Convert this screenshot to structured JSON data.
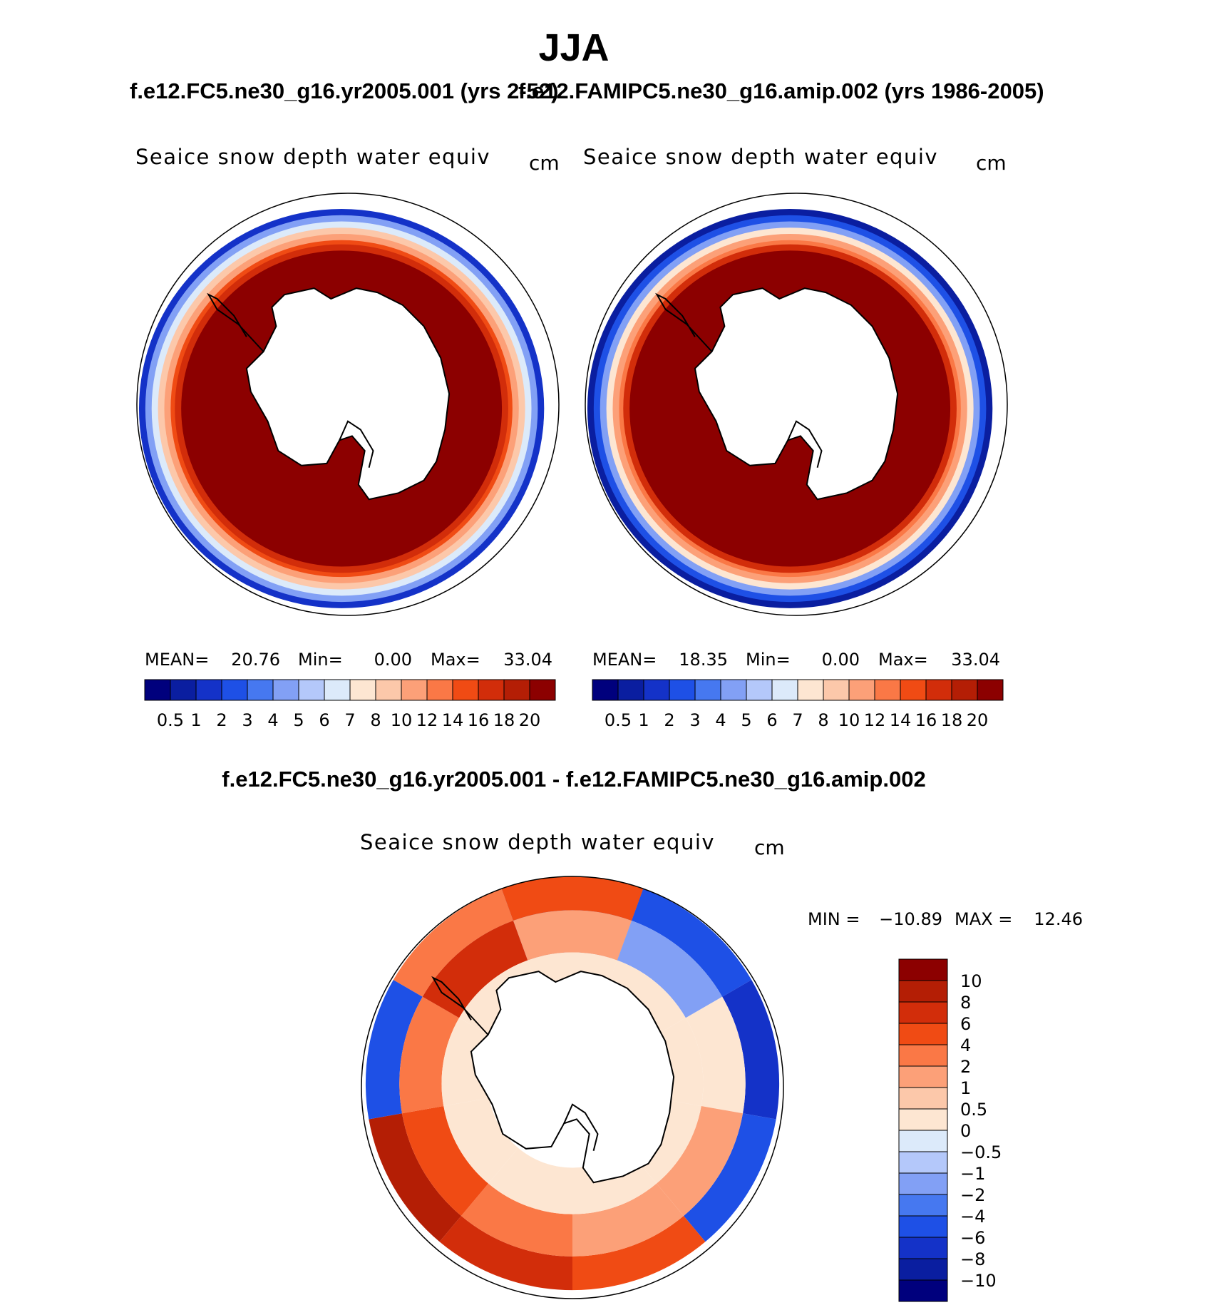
{
  "page": {
    "season": "JJA",
    "header_left": "f.e12.FC5.ne30_g16.yr2005.001 (yrs 2-52)",
    "header_right": "f.e12.FAMIPC5.ne30_g16.amip.002 (yrs 1986-2005)",
    "diff_title": "f.e12.FC5.ne30_g16.yr2005.001 - f.e12.FAMIPC5.ne30_g16.amip.002"
  },
  "chart_data": [
    {
      "type": "heatmap",
      "projection": "south-polar-stereographic",
      "title": "Seaice snow depth water equiv",
      "units": "cm",
      "stats": {
        "mean_label": "MEAN=",
        "mean": "20.76",
        "min_label": "Min=",
        "min": "0.00",
        "max_label": "Max=",
        "max": "33.04"
      },
      "colorbar_labels": [
        "0.5",
        "1",
        "2",
        "3",
        "4",
        "5",
        "6",
        "7",
        "8",
        "10",
        "12",
        "14",
        "16",
        "18",
        "20"
      ],
      "colors": [
        "#00007d",
        "#0a1ea0",
        "#1432c8",
        "#1e50e6",
        "#4678f0",
        "#82a0f5",
        "#b4c8fa",
        "#dceafa",
        "#fde6d2",
        "#fcc8aa",
        "#fca078",
        "#fa7846",
        "#f04b14",
        "#d22d0a",
        "#b41e05",
        "#8c0000"
      ],
      "ring_levels": [
        2,
        5,
        7,
        9,
        10,
        12,
        13,
        15
      ]
    },
    {
      "type": "heatmap",
      "projection": "south-polar-stereographic",
      "title": "Seaice snow depth water equiv",
      "units": "cm",
      "stats": {
        "mean_label": "MEAN=",
        "mean": "18.35",
        "min_label": "Min=",
        "min": "0.00",
        "max_label": "Max=",
        "max": "33.04"
      },
      "colorbar_labels": [
        "0.5",
        "1",
        "2",
        "3",
        "4",
        "5",
        "6",
        "7",
        "8",
        "10",
        "12",
        "14",
        "16",
        "18",
        "20"
      ],
      "colors": [
        "#00007d",
        "#0a1ea0",
        "#1432c8",
        "#1e50e6",
        "#4678f0",
        "#82a0f5",
        "#b4c8fa",
        "#dceafa",
        "#fde6d2",
        "#fcc8aa",
        "#fca078",
        "#fa7846",
        "#f04b14",
        "#d22d0a",
        "#b41e05",
        "#8c0000"
      ],
      "ring_levels": [
        1,
        3,
        5,
        8,
        10,
        11,
        13,
        15
      ]
    },
    {
      "type": "heatmap",
      "projection": "south-polar-stereographic",
      "title": "Seaice snow depth water equiv",
      "units": "cm",
      "stats": {
        "min_label": "MIN =",
        "min": "−10.89",
        "max_label": "MAX =",
        "max": "12.46"
      },
      "colorbar_labels": [
        "10",
        "8",
        "6",
        "4",
        "2",
        "1",
        "0.5",
        "0",
        "−0.5",
        "−1",
        "−2",
        "−4",
        "−6",
        "−8",
        "−10"
      ],
      "colors": [
        "#8c0000",
        "#b41e05",
        "#d22d0a",
        "#f04b14",
        "#fa7846",
        "#fca078",
        "#fcc8aa",
        "#fde6d2",
        "#dceafa",
        "#b4c8fa",
        "#82a0f5",
        "#4678f0",
        "#1e50e6",
        "#1432c8",
        "#0a1ea0",
        "#00007d"
      ]
    }
  ]
}
